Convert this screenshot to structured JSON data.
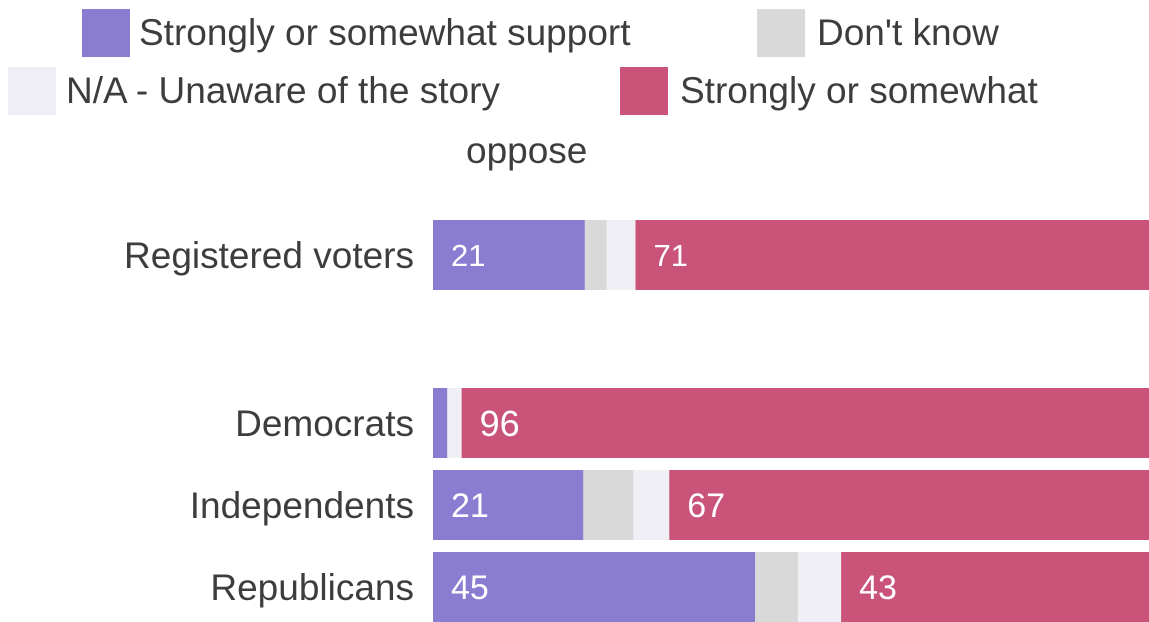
{
  "legend": {
    "items": [
      {
        "label": "Strongly or somewhat support",
        "color": "#8a7cd0"
      },
      {
        "label": "Don't know",
        "color": "#d9d9d9"
      },
      {
        "label": "N/A - Unaware of the story",
        "color": "#f0eff6"
      },
      {
        "label": "Strongly or somewhat oppose",
        "color": "#c95379"
      }
    ],
    "oppose_line1": "Strongly or somewhat",
    "oppose_line2": "oppose"
  },
  "chart_data": {
    "type": "bar",
    "orientation": "horizontal",
    "stacked": true,
    "categories": [
      "Registered voters",
      "Democrats",
      "Independents",
      "Republicans"
    ],
    "series": [
      {
        "name": "Strongly or somewhat support",
        "values": [
          21,
          2,
          21,
          45
        ],
        "color": "#8a7cd0"
      },
      {
        "name": "Don't know",
        "values": [
          3,
          0,
          7,
          6
        ],
        "color": "#d9d9d9"
      },
      {
        "name": "N/A - Unaware of the story",
        "values": [
          4,
          2,
          5,
          6
        ],
        "color": "#f0eff6"
      },
      {
        "name": "Strongly or somewhat oppose",
        "values": [
          71,
          96,
          67,
          43
        ],
        "color": "#c95379"
      }
    ],
    "data_labels": [
      [
        "21",
        "",
        "",
        "71"
      ],
      [
        "",
        "",
        "",
        "96"
      ],
      [
        "21",
        "",
        "",
        "67"
      ],
      [
        "45",
        "",
        "",
        "43"
      ]
    ],
    "xlim": [
      0,
      100
    ],
    "legend_position": "top"
  }
}
